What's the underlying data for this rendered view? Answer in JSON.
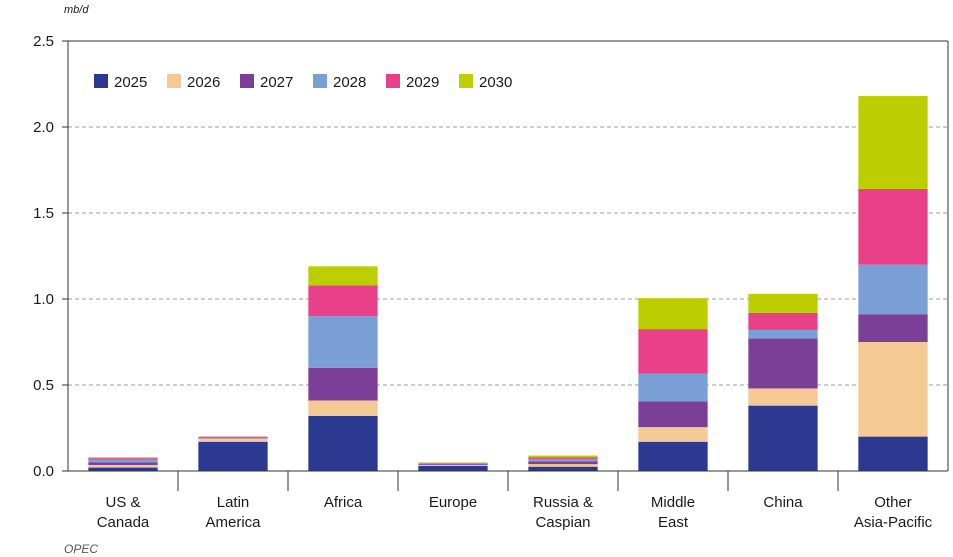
{
  "chart_data": {
    "type": "bar",
    "stacked": true,
    "ylabel": "mb/d",
    "ylim": [
      0,
      2.5
    ],
    "yticks": [
      "0.0",
      "0.5",
      "1.0",
      "1.5",
      "2.0",
      "2.5"
    ],
    "grid": "horizontal dashed",
    "legend_position": "top-left",
    "categories": [
      [
        "US &",
        "Canada"
      ],
      [
        "Latin",
        "America"
      ],
      [
        "Africa"
      ],
      [
        "Europe"
      ],
      [
        "Russia &",
        "Caspian"
      ],
      [
        "Middle",
        "East"
      ],
      [
        "China"
      ],
      [
        "Other",
        "Asia-Pacific"
      ]
    ],
    "series": [
      {
        "name": "2025",
        "color": "#2b3990",
        "values": [
          0.02,
          0.17,
          0.32,
          0.03,
          0.025,
          0.17,
          0.38,
          0.2
        ]
      },
      {
        "name": "2026",
        "color": "#f5c993",
        "values": [
          0.015,
          0.02,
          0.09,
          0.005,
          0.015,
          0.085,
          0.1,
          0.55
        ]
      },
      {
        "name": "2027",
        "color": "#7b3f98",
        "values": [
          0.015,
          0.005,
          0.19,
          0.005,
          0.015,
          0.15,
          0.29,
          0.16
        ]
      },
      {
        "name": "2028",
        "color": "#7a9fd4",
        "values": [
          0.015,
          0.003,
          0.3,
          0.005,
          0.015,
          0.16,
          0.05,
          0.29
        ]
      },
      {
        "name": "2029",
        "color": "#e8418a",
        "values": [
          0.01,
          0.002,
          0.18,
          0.003,
          0.01,
          0.26,
          0.1,
          0.44
        ]
      },
      {
        "name": "2030",
        "color": "#bdce00",
        "values": [
          0.005,
          0.0,
          0.11,
          0.002,
          0.01,
          0.18,
          0.11,
          0.54
        ]
      }
    ],
    "source": "OPEC"
  }
}
